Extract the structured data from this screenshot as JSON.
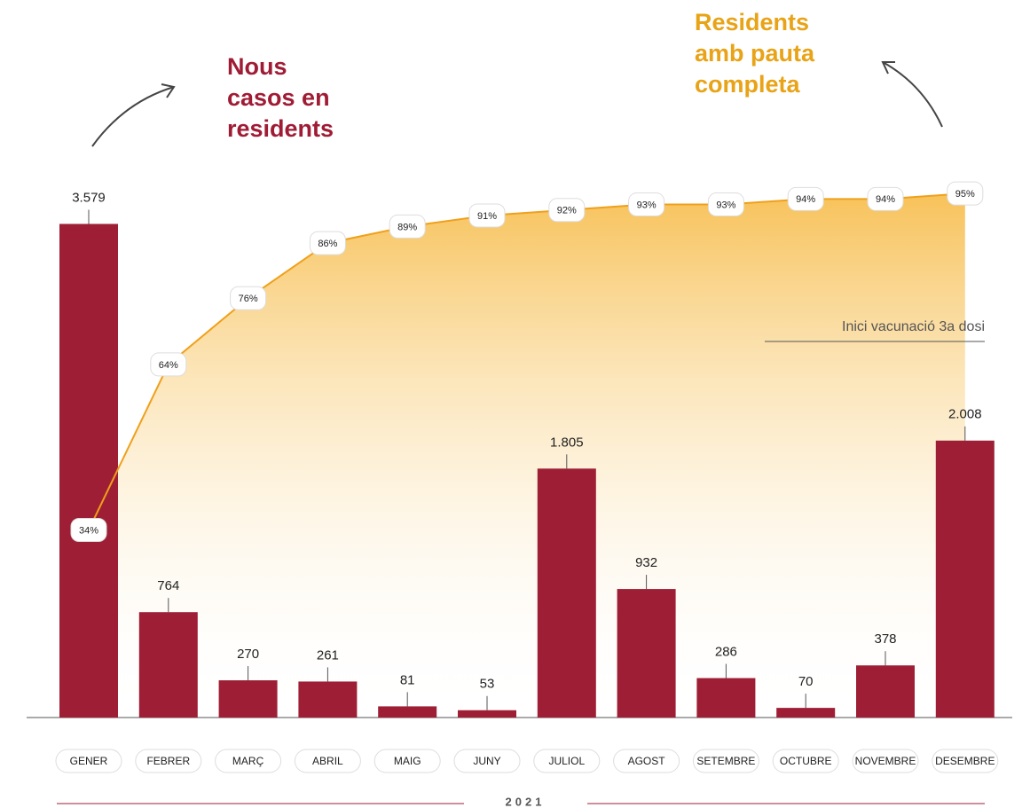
{
  "chart_data": {
    "type": "bar",
    "categories": [
      "GENER",
      "FEBRER",
      "MARÇ",
      "ABRIL",
      "MAIG",
      "JUNY",
      "JULIOL",
      "AGOST",
      "SETEMBRE",
      "OCTUBRE",
      "NOVEMBRE",
      "DESEMBRE"
    ],
    "ylim": [
      0,
      4000
    ],
    "y2lim": [
      0,
      100
    ],
    "series": [
      {
        "name": "Nous casos en residents",
        "type": "bar",
        "color": "#9e1f35",
        "values": [
          3579,
          764,
          270,
          261,
          81,
          53,
          1805,
          932,
          286,
          70,
          378,
          2008
        ],
        "value_labels": [
          "3.579",
          "764",
          "270",
          "261",
          "81",
          "53",
          "1.805",
          "932",
          "286",
          "70",
          "378",
          "2.008"
        ]
      },
      {
        "name": "Residents amb pauta completa",
        "type": "area",
        "axis": "y2",
        "color": "#f0a01a",
        "values": [
          34,
          64,
          76,
          86,
          89,
          91,
          92,
          93,
          93,
          94,
          94,
          95
        ],
        "value_labels": [
          "34%",
          "64%",
          "76%",
          "86%",
          "89%",
          "91%",
          "92%",
          "93%",
          "93%",
          "94%",
          "94%",
          "95%"
        ]
      }
    ],
    "annotation": "Inici vacunació 3a dosi",
    "xlabel": "2021"
  }
}
